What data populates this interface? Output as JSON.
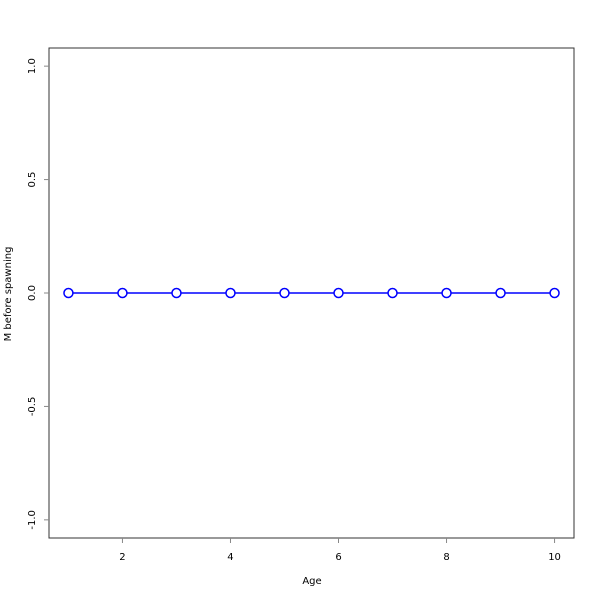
{
  "chart_data": {
    "type": "line",
    "title": "",
    "xlabel": "Age",
    "ylabel": "M before spawning",
    "x": [
      1,
      2,
      3,
      4,
      5,
      6,
      7,
      8,
      9,
      10
    ],
    "series": [
      {
        "values": [
          0,
          0,
          0,
          0,
          0,
          0,
          0,
          0,
          0,
          0
        ],
        "color": "#0000ff",
        "marker": "open-circle"
      }
    ],
    "xlim": [
      0.64,
      10.36
    ],
    "ylim": [
      -1.08,
      1.08
    ],
    "xticks": [
      2,
      4,
      6,
      8,
      10
    ],
    "xtick_labels": [
      "2",
      "4",
      "6",
      "8",
      "10"
    ],
    "yticks": [
      -1.0,
      -0.5,
      0.0,
      0.5,
      1.0
    ],
    "ytick_labels": [
      "-1.0",
      "-0.5",
      "0.0",
      "0.5",
      "1.0"
    ],
    "grid": false,
    "legend": "none"
  }
}
